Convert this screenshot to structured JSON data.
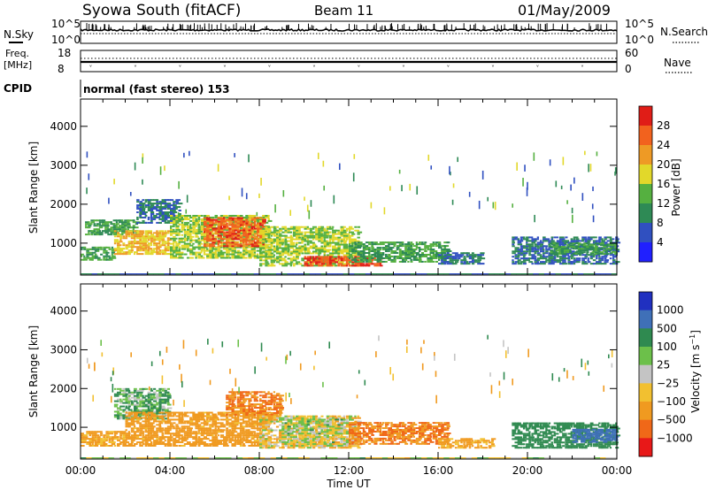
{
  "header": {
    "title": "Syowa South (fitACF)",
    "beam": "Beam 11",
    "date": "01/May/2009"
  },
  "top_panel": {
    "left_label": "N.Sky",
    "right_label": "N.Search",
    "tick_top": "10^5",
    "tick_bottom": "10^0",
    "right_tick_top": "10^5",
    "right_tick_bottom": "10^0"
  },
  "freq_panel": {
    "left_label_line1": "Freq.",
    "left_label_line2": "[MHz]",
    "right_label": "Nave",
    "left_tick_top": "18",
    "left_tick_bottom": "8",
    "right_tick_top": "60",
    "right_tick_bottom": "0"
  },
  "cpid": {
    "label": "CPID",
    "value": "normal (fast stereo) 153"
  },
  "chart_data": [
    {
      "type": "heatmap",
      "title": "",
      "xlabel": "",
      "ylabel": "Slant Range [km]",
      "xlim_hours_ut": [
        0,
        24
      ],
      "ylim": [
        180,
        4700
      ],
      "x_ticks": [
        "00:00",
        "04:00",
        "08:00",
        "12:00",
        "16:00",
        "20:00",
        "00:00"
      ],
      "y_ticks": [
        "1000",
        "2000",
        "3000",
        "4000"
      ],
      "y_tick_values": [
        1000,
        2000,
        3000,
        4000
      ],
      "colorbar": {
        "label": "Power [dB]",
        "tick_labels": [
          "4",
          "8",
          "12",
          "16",
          "20",
          "24",
          "28"
        ],
        "colors": [
          "#2020ff",
          "#3050c0",
          "#2e8a55",
          "#55b040",
          "#e2d82a",
          "#ee9a25",
          "#f2621e",
          "#e01d17"
        ]
      },
      "echo_regions": [
        {
          "t_start": 0.0,
          "t_end": 24.0,
          "r_min": 195,
          "r_max": 225,
          "value": 8,
          "note": "near-range ground band"
        },
        {
          "t_start": 0.0,
          "t_end": 1.4,
          "r_min": 550,
          "r_max": 900,
          "value": 12
        },
        {
          "t_start": 0.2,
          "t_end": 2.5,
          "r_min": 1200,
          "r_max": 1600,
          "value": 12
        },
        {
          "t_start": 1.5,
          "t_end": 4.0,
          "r_min": 700,
          "r_max": 1300,
          "value": 20
        },
        {
          "t_start": 2.5,
          "t_end": 4.5,
          "r_min": 1500,
          "r_max": 2100,
          "value": 8
        },
        {
          "t_start": 4.0,
          "t_end": 8.5,
          "r_min": 600,
          "r_max": 1700,
          "value": 16
        },
        {
          "t_start": 5.5,
          "t_end": 8.2,
          "r_min": 900,
          "r_max": 1650,
          "value": 26
        },
        {
          "t_start": 8.0,
          "t_end": 12.5,
          "r_min": 400,
          "r_max": 1400,
          "value": 16
        },
        {
          "t_start": 10.0,
          "t_end": 13.5,
          "r_min": 400,
          "r_max": 650,
          "value": 28
        },
        {
          "t_start": 12.0,
          "t_end": 16.5,
          "r_min": 500,
          "r_max": 1000,
          "value": 12
        },
        {
          "t_start": 16.0,
          "t_end": 18.0,
          "r_min": 450,
          "r_max": 750,
          "value": 8
        },
        {
          "t_start": 19.3,
          "t_end": 24.0,
          "r_min": 450,
          "r_max": 1150,
          "value": 8
        },
        {
          "t_start": 21.0,
          "t_end": 24.0,
          "r_min": 700,
          "r_max": 1000,
          "value": 12
        }
      ]
    },
    {
      "type": "heatmap",
      "title": "",
      "xlabel": "Time UT",
      "ylabel": "Slant Range [km]",
      "xlim_hours_ut": [
        0,
        24
      ],
      "ylim": [
        180,
        4700
      ],
      "x_ticks": [
        "00:00",
        "04:00",
        "08:00",
        "12:00",
        "16:00",
        "20:00",
        "00:00"
      ],
      "y_ticks": [
        "1000",
        "2000",
        "3000",
        "4000"
      ],
      "y_tick_values": [
        1000,
        2000,
        3000,
        4000
      ],
      "colorbar": {
        "label": "Velocity [m s^-1]",
        "tick_labels": [
          "1000",
          "500",
          "100",
          "25",
          "−25",
          "−100",
          "−500",
          "−1000"
        ],
        "colors": [
          "#2030c0",
          "#3f70b8",
          "#2f8a50",
          "#6cc04a",
          "#c4c4c4",
          "#f2c030",
          "#f09a20",
          "#f06818",
          "#e81818"
        ]
      },
      "echo_regions": [
        {
          "t_start": 0.0,
          "t_end": 24.0,
          "r_min": 195,
          "r_max": 225,
          "value": 0,
          "note": "near-range ground band"
        },
        {
          "t_start": 0.0,
          "t_end": 2.0,
          "r_min": 500,
          "r_max": 900,
          "value": -150
        },
        {
          "t_start": 1.5,
          "t_end": 4.0,
          "r_min": 1200,
          "r_max": 2000,
          "value": 100
        },
        {
          "t_start": 2.0,
          "t_end": 8.5,
          "r_min": 500,
          "r_max": 1400,
          "value": -200
        },
        {
          "t_start": 6.5,
          "t_end": 9.0,
          "r_min": 1300,
          "r_max": 1900,
          "value": -500
        },
        {
          "t_start": 8.0,
          "t_end": 12.5,
          "r_min": 450,
          "r_max": 1300,
          "value": -50
        },
        {
          "t_start": 9.0,
          "t_end": 12.0,
          "r_min": 500,
          "r_max": 1200,
          "value": 0
        },
        {
          "t_start": 12.0,
          "t_end": 16.5,
          "r_min": 550,
          "r_max": 1100,
          "value": -500
        },
        {
          "t_start": 16.0,
          "t_end": 18.5,
          "r_min": 450,
          "r_max": 700,
          "value": -150
        },
        {
          "t_start": 19.3,
          "t_end": 24.0,
          "r_min": 450,
          "r_max": 1100,
          "value": 300
        },
        {
          "t_start": 22.0,
          "t_end": 24.0,
          "r_min": 600,
          "r_max": 950,
          "value": 800
        }
      ]
    }
  ]
}
